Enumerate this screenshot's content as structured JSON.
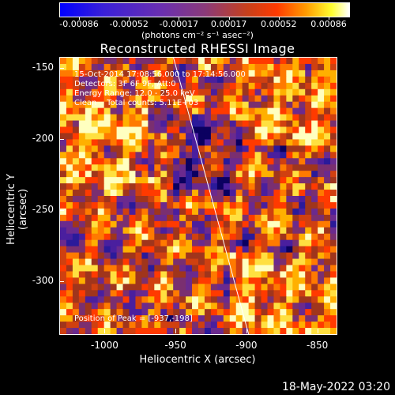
{
  "colorbar": {
    "tick_labels": [
      "-0.00086",
      "-0.00052",
      "-0.00017",
      "0.00017",
      "0.00052",
      "0.00086"
    ],
    "units_label": "(photons cm⁻² s⁻¹ asec⁻²)",
    "colors": [
      "#0000ff",
      "#6a2fb0",
      "#c8401a",
      "#ff3a00",
      "#ffff30",
      "#ffffff"
    ]
  },
  "header": {
    "title": "Reconstructed RHESSI Image"
  },
  "overlay": {
    "line1": "15-Oct-2014 17:08:56.000 to 17:14:56.000",
    "line2": "Detectors: 3F 6F 9F, Att:0",
    "line3": "Energy Range: 12.0 - 25.0 keV",
    "line4": "Clean    Total counts: 5.11E+03",
    "peak": "Position of Peak = [-937,-198]"
  },
  "chart_data": {
    "type": "heatmap",
    "title": "Reconstructed RHESSI Image",
    "xlabel": "Heliocentric X (arcsec)",
    "ylabel": "Heliocentric Y (arcsec)",
    "xlim": [
      -1032,
      -837
    ],
    "ylim": [
      -337,
      -142
    ],
    "xticks": [
      -1000,
      -950,
      -900,
      -850
    ],
    "yticks": [
      -150,
      -200,
      -250,
      -300
    ],
    "xtick_labels": [
      "-1000",
      "-950",
      "-900",
      "-850"
    ],
    "ytick_labels": [
      "-150",
      "-200",
      "-250",
      "-300"
    ],
    "limb_line": [
      [
        -952,
        -142
      ],
      [
        -899,
        -337
      ]
    ]
  },
  "footer": {
    "date": "18-May-2022 03:20"
  }
}
